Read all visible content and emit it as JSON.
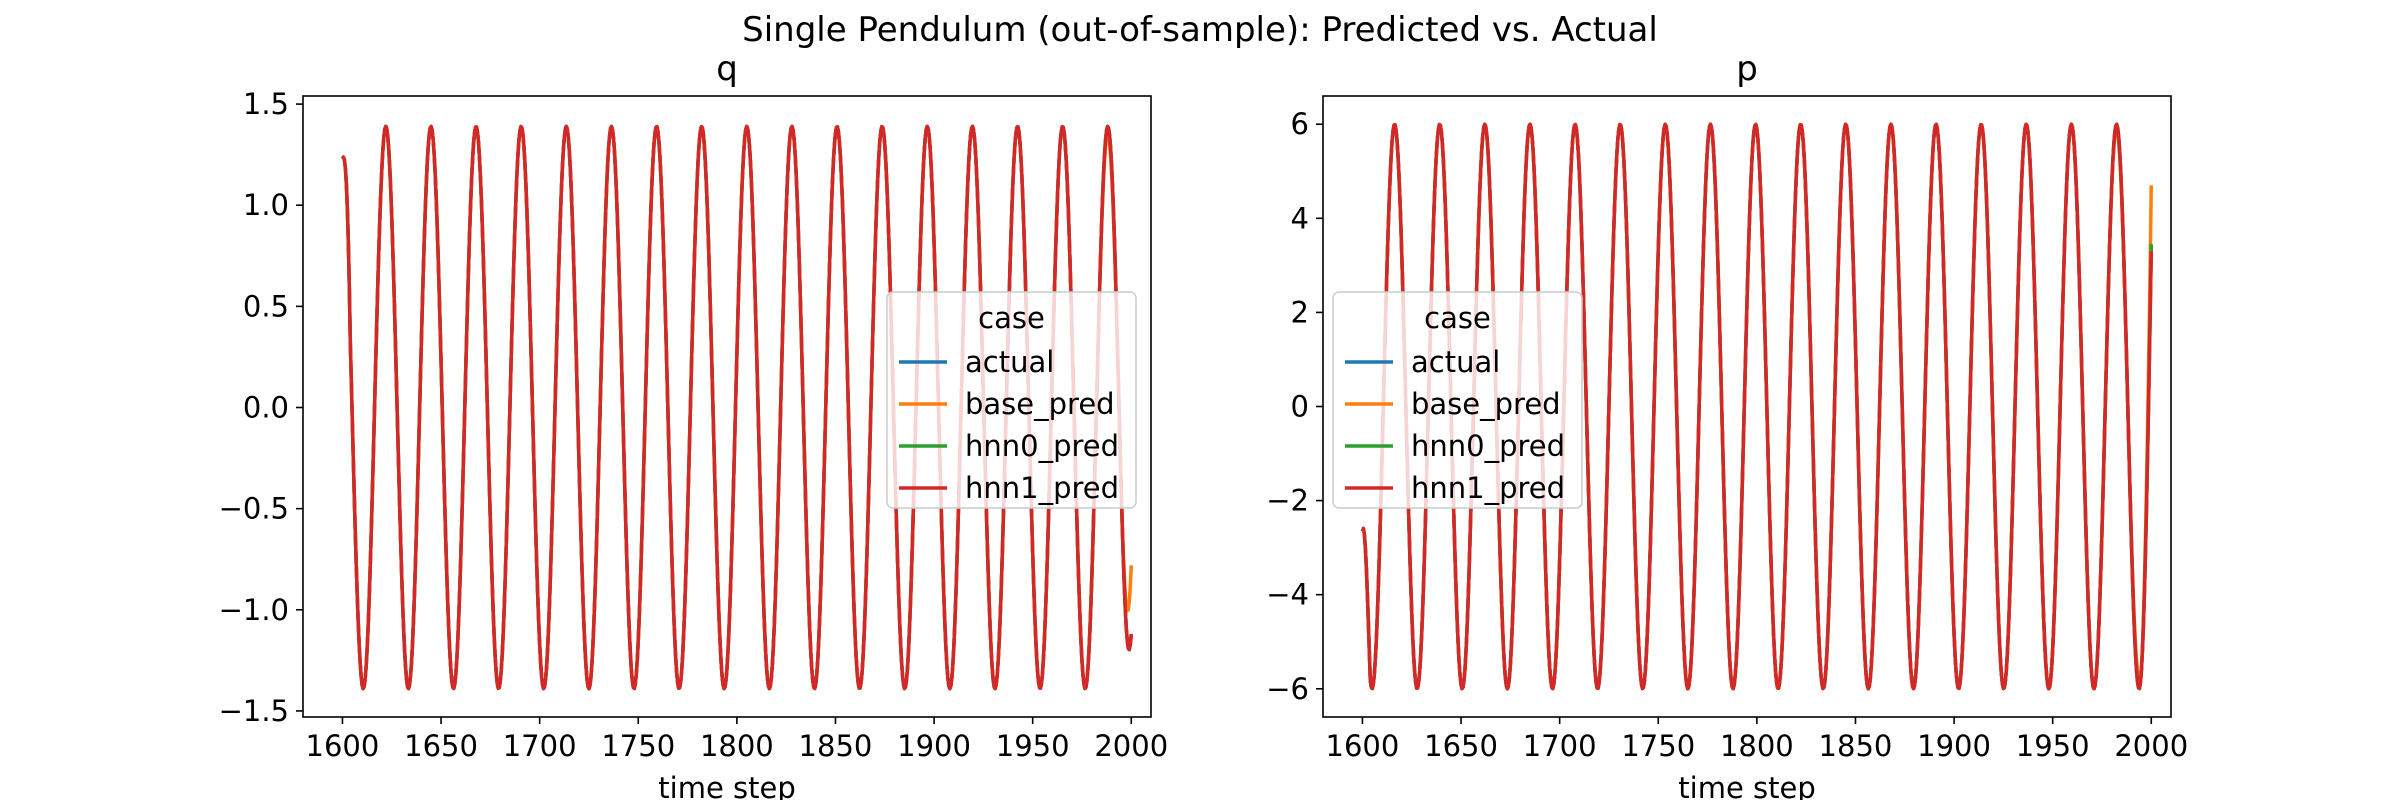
{
  "chart_data": {
    "type": "line",
    "title": "Single Pendulum (out-of-sample): Predicted vs. Actual",
    "subplots": [
      {
        "title": "q",
        "xlabel": "time step",
        "ylabel": "",
        "xlim": [
          1580,
          2010
        ],
        "ylim": [
          -1.53,
          1.54
        ],
        "xticks": [
          1600,
          1650,
          1700,
          1750,
          1800,
          1850,
          1900,
          1950,
          2000
        ],
        "xtick_labels": [
          "1600",
          "1650",
          "1700",
          "1750",
          "1800",
          "1850",
          "1900",
          "1950",
          "2000"
        ],
        "yticks": [
          -1.5,
          -1.0,
          -0.5,
          0.0,
          0.5,
          1.0,
          1.5
        ],
        "ytick_labels": [
          "−1.5",
          "−1.0",
          "−0.5",
          "0.0",
          "0.5",
          "1.0",
          "1.5"
        ],
        "legend": {
          "title": "case",
          "placement": "center-right",
          "entries": [
            "actual",
            "base_pred",
            "hnn0_pred",
            "hnn1_pred"
          ]
        },
        "signal": {
          "x_start": 1600,
          "x_end": 2000,
          "amplitude": 1.39,
          "period": 22.88,
          "phase_peak_x": 1622,
          "start_value": 1.23
        },
        "series": [
          {
            "name": "actual",
            "color": "#1f77b4",
            "end_value": -1.12
          },
          {
            "name": "base_pred",
            "color": "#ff7f0e",
            "end_value": -0.78,
            "diverge_from_x": 1975
          },
          {
            "name": "hnn0_pred",
            "color": "#2ca02c",
            "end_value": -1.12
          },
          {
            "name": "hnn1_pred",
            "color": "#d62728",
            "end_value": -1.12
          }
        ]
      },
      {
        "title": "p",
        "xlabel": "time step",
        "ylabel": "",
        "xlim": [
          1580,
          2010
        ],
        "ylim": [
          -6.6,
          6.6
        ],
        "xticks": [
          1600,
          1650,
          1700,
          1750,
          1800,
          1850,
          1900,
          1950,
          2000
        ],
        "xtick_labels": [
          "1600",
          "1650",
          "1700",
          "1750",
          "1800",
          "1850",
          "1900",
          "1950",
          "2000"
        ],
        "yticks": [
          -6,
          -4,
          -2,
          0,
          2,
          4,
          6
        ],
        "ytick_labels": [
          "−6",
          "−4",
          "−2",
          "0",
          "2",
          "4",
          "6"
        ],
        "legend": {
          "title": "case",
          "placement": "center-left",
          "entries": [
            "actual",
            "base_pred",
            "hnn0_pred",
            "hnn1_pred"
          ]
        },
        "signal": {
          "x_start": 1600,
          "x_end": 2000,
          "amplitude": 6.0,
          "period": 22.88,
          "phase_peak_x": 1616.3,
          "start_value": -2.65
        },
        "series": [
          {
            "name": "actual",
            "color": "#1f77b4",
            "end_value": 3.4
          },
          {
            "name": "base_pred",
            "color": "#ff7f0e",
            "end_value": 4.7,
            "diverge_from_x": 1975
          },
          {
            "name": "hnn0_pred",
            "color": "#2ca02c",
            "end_value": 3.45
          },
          {
            "name": "hnn1_pred",
            "color": "#d62728",
            "end_value": 3.3
          }
        ]
      }
    ]
  }
}
